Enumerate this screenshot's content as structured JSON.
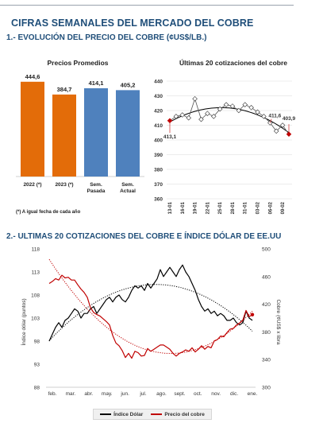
{
  "title": "CIFRAS SEMANALES DEL MERCADO DEL COBRE",
  "section1": "1.- EVOLUCIÓN DEL PRECIO DEL COBRE (¢US$/LB.)",
  "section2": "2.- ULTIMAS 20 COTIZACIONES DEL COBRE E ÍNDICE DÓLAR DE EE.UU",
  "colors": {
    "orange": "#e36c09",
    "blue": "#4f81bd",
    "copper": "#c00000",
    "dollar": "#000000",
    "title": "#1f4e79"
  },
  "chart_data": [
    {
      "type": "bar",
      "title": "Precios Promedios",
      "categories": [
        "2022 (*)",
        "2023 (*)",
        "Sem. Pasada",
        "Sem. Actual"
      ],
      "values": [
        444.6,
        384.7,
        414.1,
        405.2
      ],
      "value_labels": [
        "444,6",
        "384,7",
        "414,1",
        "405,2"
      ],
      "bar_colors": [
        "#e36c09",
        "#e36c09",
        "#4f81bd",
        "#4f81bd"
      ],
      "footnote": "(*) A igual fecha de cada año",
      "ylim": [
        0,
        470
      ]
    },
    {
      "type": "line",
      "title": "Últimas 20 cotizaciones del cobre",
      "x_ticks": [
        "13-01",
        "16-01",
        "19-01",
        "22-01",
        "25-01",
        "28-01",
        "31-01",
        "03-02",
        "06-02",
        "09-02"
      ],
      "values": [
        413.1,
        416,
        417,
        415,
        428,
        414,
        418,
        416,
        421,
        424,
        423,
        420,
        424,
        422,
        419,
        416,
        411.6,
        406,
        410,
        403.9
      ],
      "ylim": [
        360,
        440
      ],
      "yticks": [
        360,
        370,
        380,
        390,
        400,
        410,
        420,
        430,
        440
      ],
      "annotations": [
        "413,1",
        "411,6",
        "403,9"
      ],
      "trend": "polynomial"
    },
    {
      "type": "line",
      "x_ticks": [
        "feb.",
        "mar.",
        "abr.",
        "may.",
        "jun.",
        "jul.",
        "ago.",
        "sept.",
        "oct.",
        "nov.",
        "dic.",
        "ene."
      ],
      "ylabel_left": "Índice dólar (puntos)",
      "ylabel_right": "Cobre (¢US$ x libra",
      "ylim_left": [
        88,
        118
      ],
      "yticks_left": [
        88,
        93,
        98,
        103,
        108,
        113,
        118
      ],
      "ylim_right": [
        300,
        500
      ],
      "yticks_right": [
        300,
        340,
        380,
        420,
        460,
        500
      ],
      "series": [
        {
          "name": "Índice Dólar",
          "axis": "left",
          "color": "#000000",
          "values": [
            98,
            99.5,
            101,
            102,
            101,
            102.5,
            103,
            104,
            105,
            104.5,
            103,
            104,
            104,
            105,
            105.5,
            104,
            105,
            106,
            107,
            107.5,
            106.5,
            107.5,
            108,
            107,
            106.5,
            107.5,
            109,
            110,
            109.5,
            110,
            109,
            110.5,
            109.5,
            110.5,
            111.5,
            113.5,
            112,
            113,
            114,
            113,
            112,
            113.5,
            114.5,
            113,
            112,
            110.5,
            109,
            107,
            105.5,
            104.5,
            105,
            104,
            104.5,
            103.5,
            104,
            103.5,
            102.5,
            102.5,
            103,
            102,
            101.5,
            102,
            104.5,
            103,
            102.5
          ]
        },
        {
          "name": "Precio del cobre",
          "axis": "right",
          "color": "#c00000",
          "values": [
            450,
            453,
            457,
            455,
            462,
            458,
            459,
            455,
            455,
            448,
            442,
            437,
            430,
            415,
            408,
            405,
            403,
            399,
            395,
            390,
            375,
            364,
            360,
            353,
            343,
            349,
            342,
            352,
            350,
            345,
            346,
            356,
            352,
            355,
            358,
            361,
            361,
            358,
            355,
            349,
            345,
            349,
            351,
            354,
            352,
            357,
            351,
            355,
            360,
            355,
            359,
            357,
            367,
            369,
            374,
            373,
            379,
            384,
            385,
            390,
            393,
            397,
            411,
            402,
            405
          ]
        }
      ],
      "trendlines": "polynomial (dotted)"
    }
  ]
}
